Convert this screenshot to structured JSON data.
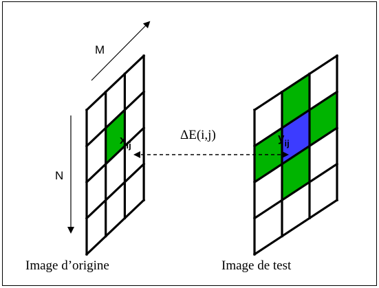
{
  "diagram": {
    "labels": {
      "m": "M",
      "n": "N",
      "delta": "ΔE(i,j)",
      "x_base": "x",
      "x_sub": "ij",
      "y_base": "y",
      "y_sub": "ij",
      "origin_caption": "Image d’origine",
      "test_caption": "Image de test"
    },
    "grid": {
      "rows": 4,
      "cols": 3
    },
    "origin_highlight": [
      {
        "row": 1,
        "col": 1,
        "color": "#00b400"
      }
    ],
    "test_highlight": [
      {
        "row": 0,
        "col": 1,
        "color": "#00b400"
      },
      {
        "row": 1,
        "col": 0,
        "color": "#00b400"
      },
      {
        "row": 1,
        "col": 1,
        "color": "#3c3cff"
      },
      {
        "row": 1,
        "col": 2,
        "color": "#00b400"
      },
      {
        "row": 2,
        "col": 1,
        "color": "#00b400"
      }
    ],
    "colors": {
      "line": "#000000",
      "green": "#00b400",
      "blue": "#3c3cff"
    }
  }
}
